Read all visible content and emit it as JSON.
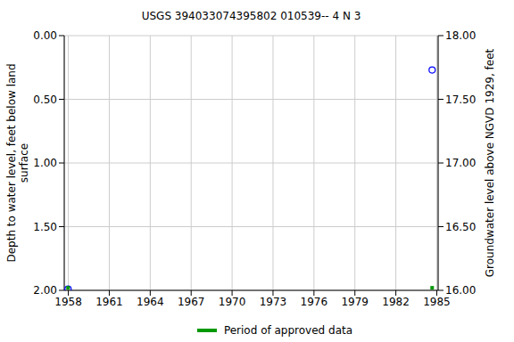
{
  "chart_data": {
    "type": "scatter",
    "title": "USGS 394033074395802 010539-- 4 N 3",
    "y_label": "Depth to water level, feet below land surface",
    "y2_label": "Groundwater level above NGVD 1929, feet",
    "xlim": [
      1957.7,
      1985.1
    ],
    "xticks": [
      1958,
      1961,
      1964,
      1967,
      1970,
      1973,
      1976,
      1979,
      1982,
      1985
    ],
    "ylim": [
      2,
      0
    ],
    "yticks": [
      {
        "value": 0,
        "label": "0.00"
      },
      {
        "value": 0.5,
        "label": "0.50"
      },
      {
        "value": 1,
        "label": "1.00"
      },
      {
        "value": 1.5,
        "label": "1.50"
      },
      {
        "value": 2,
        "label": "2.00"
      }
    ],
    "y2lim": [
      16,
      18
    ],
    "y2ticks": [
      {
        "value": 16,
        "label": "16.00"
      },
      {
        "value": 16.5,
        "label": "16.50"
      },
      {
        "value": 17,
        "label": "17.00"
      },
      {
        "value": 17.5,
        "label": "17.50"
      },
      {
        "value": 18,
        "label": "18.00"
      }
    ],
    "grid": true,
    "legend": "bottom",
    "series": [
      {
        "color": "#0000ff",
        "marker": "open_circle",
        "x": [
          1957.98,
          1984.66
        ],
        "values": [
          1.99,
          0.27
        ]
      },
      {
        "name": "Period of approved data",
        "color": "#009900",
        "marker": "square",
        "x": [
          1957.98,
          1984.66
        ],
        "values": [
          1.98,
          1.98
        ]
      }
    ]
  }
}
